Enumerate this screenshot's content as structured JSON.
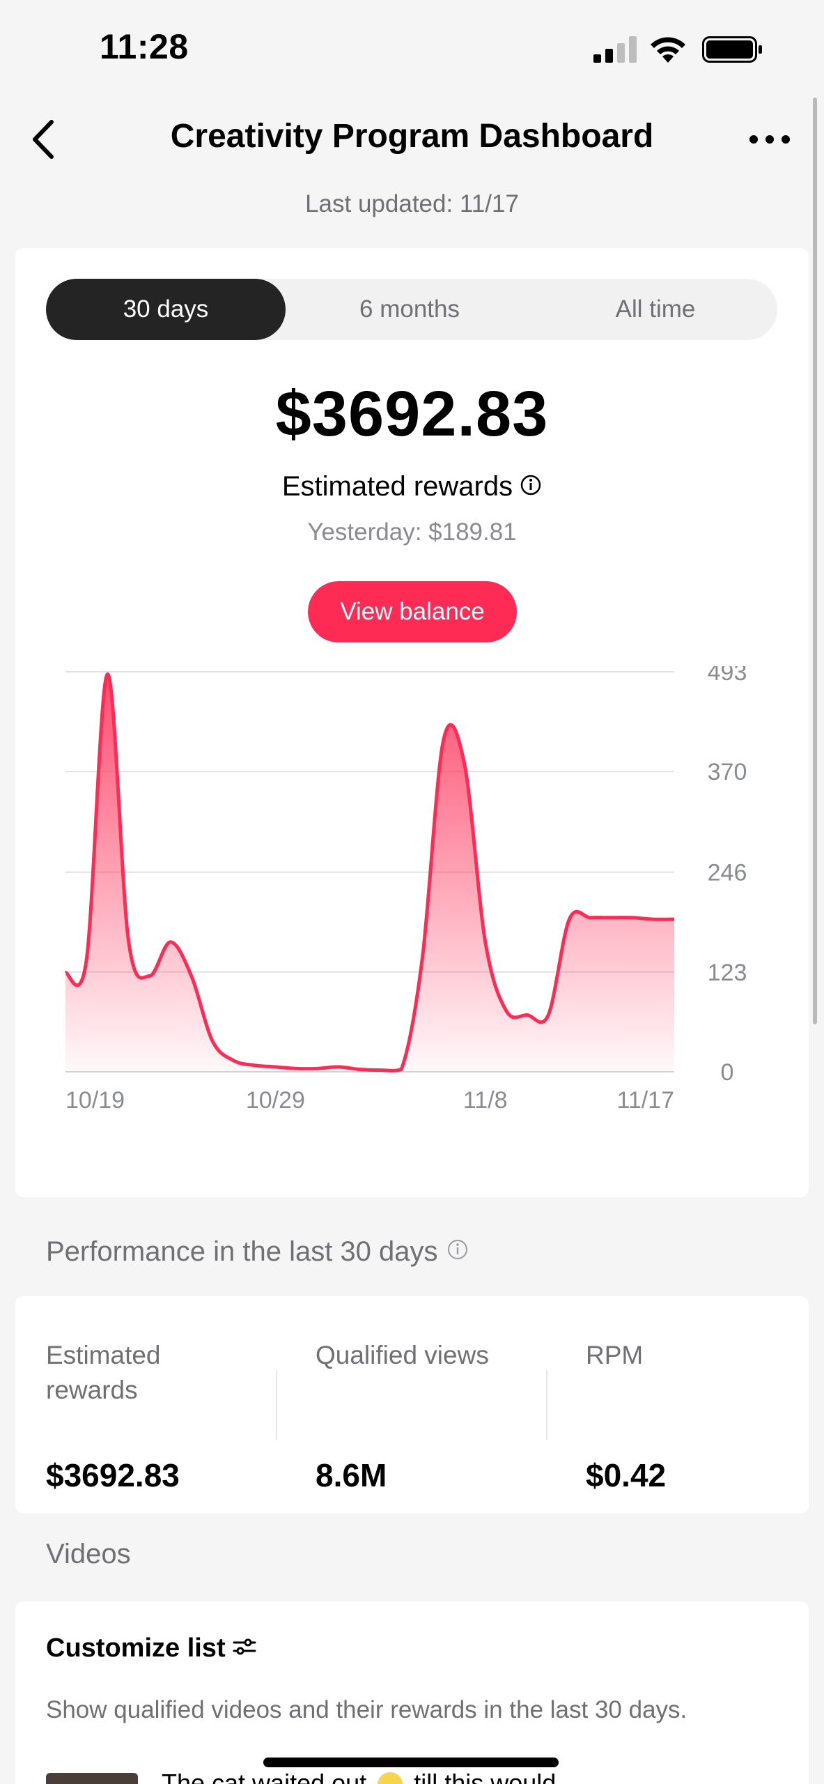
{
  "status_bar": {
    "time": "11:28"
  },
  "header": {
    "title": "Creativity Program Dashboard",
    "last_updated": "Last updated: 11/17"
  },
  "tabs": [
    {
      "label": "30 days",
      "active": true
    },
    {
      "label": "6 months",
      "active": false
    },
    {
      "label": "All time",
      "active": false
    }
  ],
  "summary": {
    "amount": "$3692.83",
    "label": "Estimated rewards",
    "yesterday": "Yesterday: $189.81",
    "button": "View balance"
  },
  "chart_data": {
    "type": "area",
    "x_tick_labels": [
      "10/19",
      "10/29",
      "11/8",
      "11/17"
    ],
    "y_ticks": [
      0,
      123,
      246,
      370,
      493
    ],
    "ylim": [
      0,
      493
    ],
    "grid": true,
    "color": "#fe2c55",
    "series": [
      {
        "x_dates": [
          "10/19",
          "10/20",
          "10/21",
          "10/22",
          "10/23",
          "10/24",
          "10/25",
          "10/26",
          "10/27",
          "10/28",
          "10/29",
          "10/30",
          "10/31",
          "11/1",
          "11/2",
          "11/3",
          "11/4",
          "11/5",
          "11/6",
          "11/7",
          "11/8",
          "11/9",
          "11/10",
          "11/11",
          "11/12",
          "11/13",
          "11/14",
          "11/15",
          "11/16",
          "11/17"
        ],
        "values": [
          122,
          138,
          490,
          162,
          118,
          160,
          118,
          38,
          14,
          8,
          6,
          4,
          4,
          6,
          3,
          2,
          3,
          140,
          408,
          380,
          160,
          75,
          70,
          70,
          188,
          190,
          190,
          190,
          188,
          188
        ]
      }
    ]
  },
  "performance": {
    "title": "Performance in the last 30 days",
    "stats": [
      {
        "label": "Estimated rewards",
        "value": "$3692.83"
      },
      {
        "label": "Qualified views",
        "value": "8.6M"
      },
      {
        "label": "RPM",
        "value": "$0.42"
      }
    ]
  },
  "videos": {
    "title": "Videos",
    "customize": "Customize list",
    "description": "Show qualified videos and their rewards in the last 30 days.",
    "first_video_title": "The cat waited out",
    "first_video_title_suffix": "till this would"
  }
}
